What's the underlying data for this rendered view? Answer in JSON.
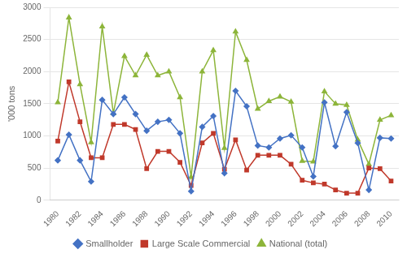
{
  "chart_data": {
    "type": "line",
    "x": [
      1980,
      1981,
      1982,
      1983,
      1984,
      1985,
      1986,
      1987,
      1988,
      1989,
      1990,
      1991,
      1992,
      1993,
      1994,
      1995,
      1996,
      1997,
      1998,
      1999,
      2000,
      2001,
      2002,
      2003,
      2004,
      2005,
      2006,
      2007,
      2008,
      2009,
      2010
    ],
    "series": [
      {
        "name": "Smallholder",
        "color": "#4472c4",
        "marker": "diamond",
        "values": [
          620,
          1020,
          620,
          290,
          1560,
          1340,
          1600,
          1340,
          1080,
          1220,
          1250,
          1040,
          140,
          1140,
          1310,
          420,
          1700,
          1460,
          850,
          820,
          960,
          1010,
          820,
          370,
          1520,
          840,
          1370,
          890,
          160,
          970,
          960
        ]
      },
      {
        "name": "Large Scale Commercial",
        "color": "#c0392b",
        "marker": "square",
        "values": [
          920,
          1840,
          1220,
          660,
          660,
          1180,
          1180,
          1100,
          490,
          760,
          760,
          590,
          230,
          890,
          1040,
          480,
          940,
          470,
          700,
          700,
          700,
          560,
          310,
          270,
          250,
          160,
          110,
          110,
          500,
          490,
          300
        ]
      },
      {
        "name": "National (total)",
        "color": "#8db53a",
        "marker": "triangle",
        "values": [
          1520,
          2840,
          1800,
          900,
          2700,
          1350,
          2240,
          1940,
          2260,
          1940,
          2000,
          1600,
          360,
          2000,
          2330,
          810,
          2620,
          2180,
          1420,
          1540,
          1610,
          1530,
          610,
          600,
          1690,
          1500,
          1480,
          940,
          560,
          1250,
          1320
        ]
      }
    ],
    "y_label": "'000 tons",
    "xlim": [
      1979.3,
      2010.7
    ],
    "xticks": [
      1980,
      1982,
      1984,
      1986,
      1988,
      1990,
      1992,
      1994,
      1996,
      1998,
      2000,
      2002,
      2004,
      2006,
      2008,
      2010
    ],
    "ylim": [
      0,
      3000
    ],
    "yticks": [
      0,
      500,
      1000,
      1500,
      2000,
      2500,
      3000
    ],
    "grid": "y",
    "legend": "bottom"
  }
}
